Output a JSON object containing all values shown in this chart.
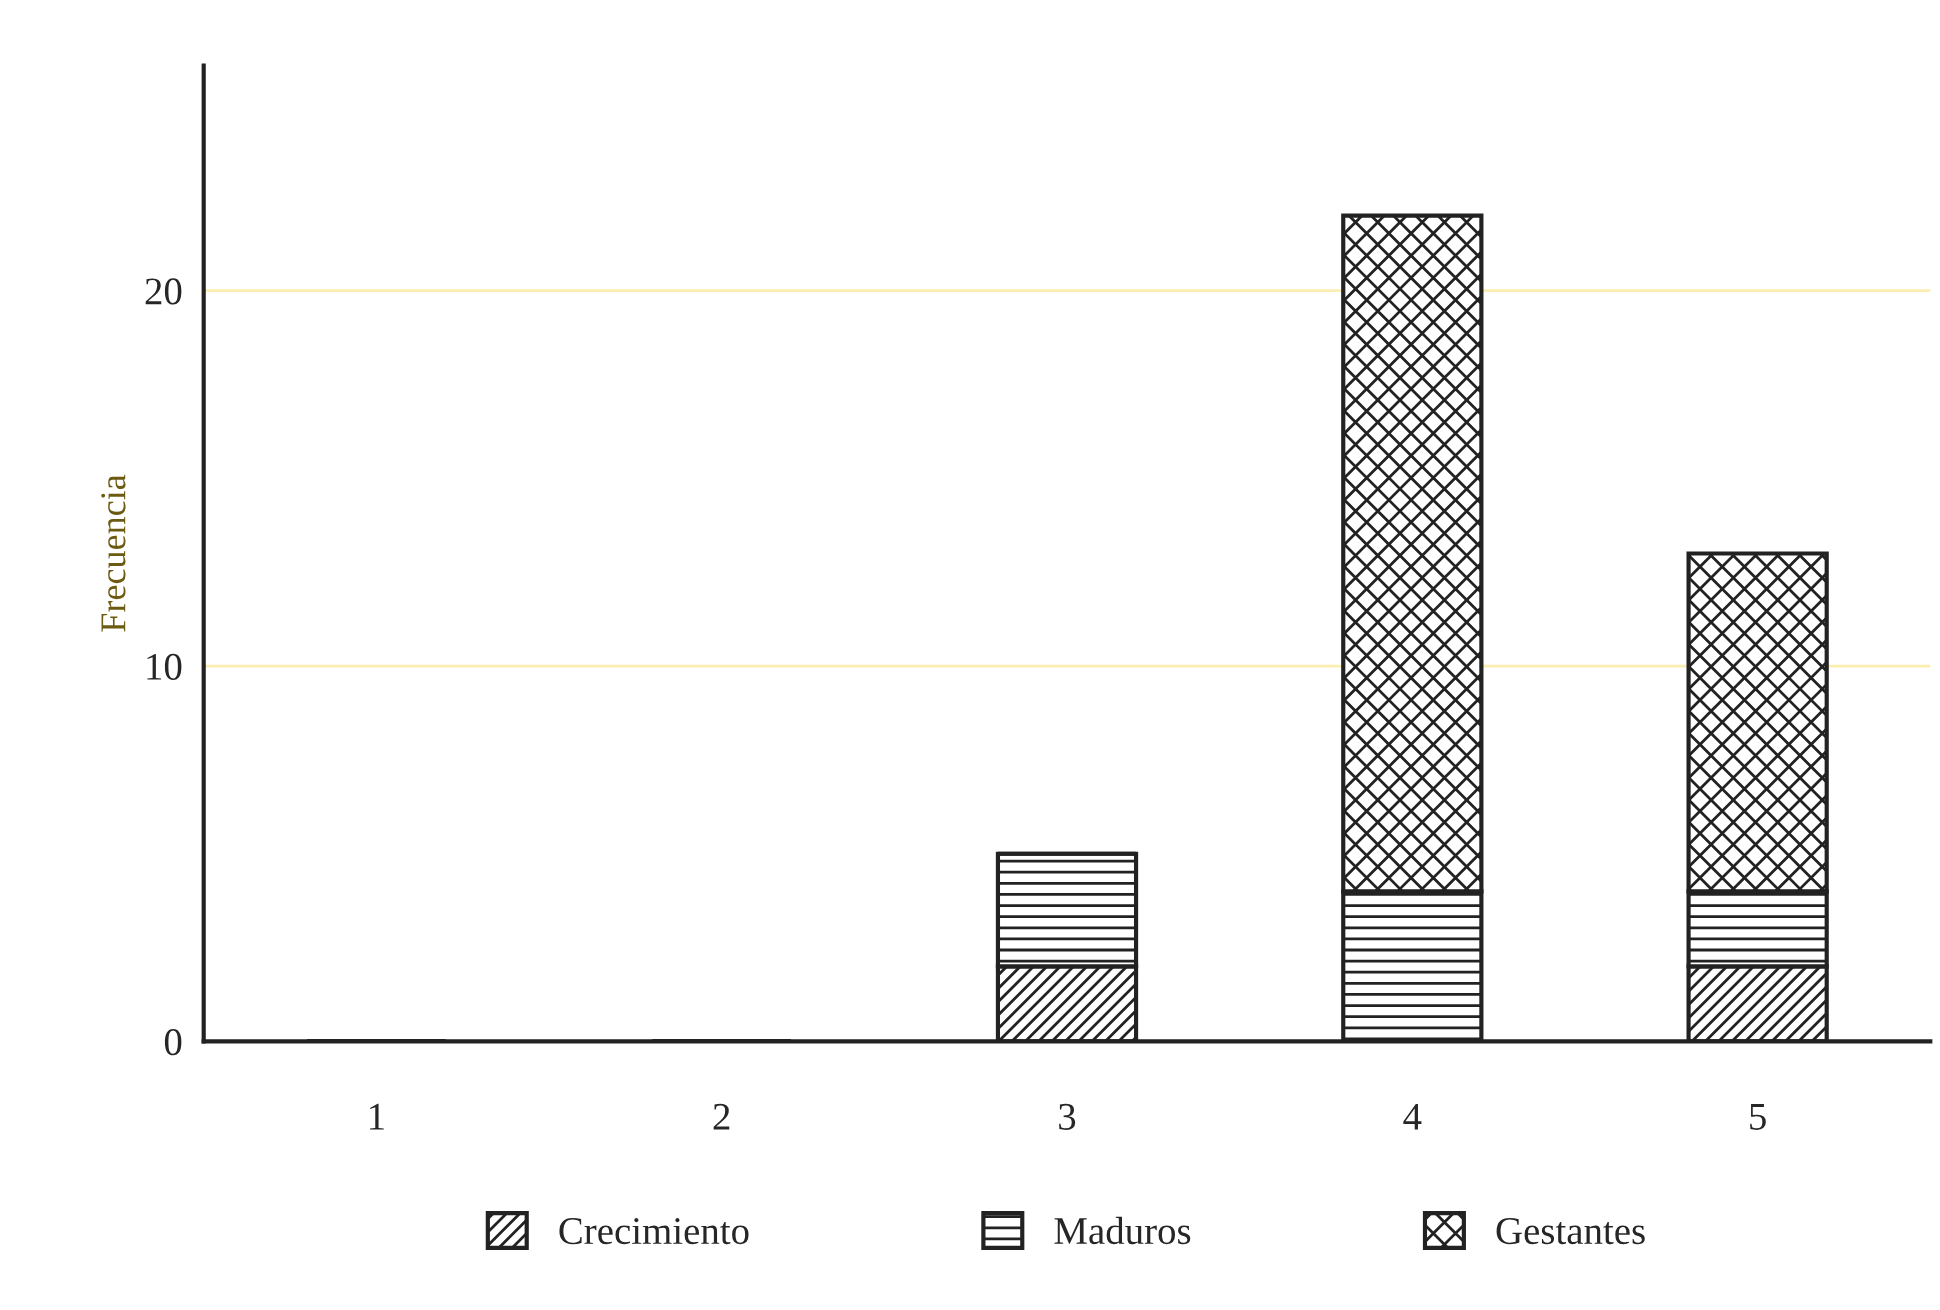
{
  "chart_data": {
    "type": "bar",
    "ylabel": "Frecuencia",
    "categories": [
      "1",
      "2",
      "3",
      "4",
      "5"
    ],
    "stacked": true,
    "series": [
      {
        "name": "Crecimiento",
        "color": "#222222",
        "values": [
          0,
          0,
          2,
          0,
          2
        ]
      },
      {
        "name": "Maduros",
        "color": "#222222",
        "values": [
          0,
          0,
          3,
          4,
          2
        ]
      },
      {
        "name": "Gestantes",
        "color": "#222222",
        "values": [
          0,
          0,
          0,
          18,
          9
        ]
      }
    ],
    "ylim": [
      0,
      26
    ],
    "yticks": [
      0,
      10,
      20
    ],
    "grid": "y",
    "legend": "bottom"
  }
}
